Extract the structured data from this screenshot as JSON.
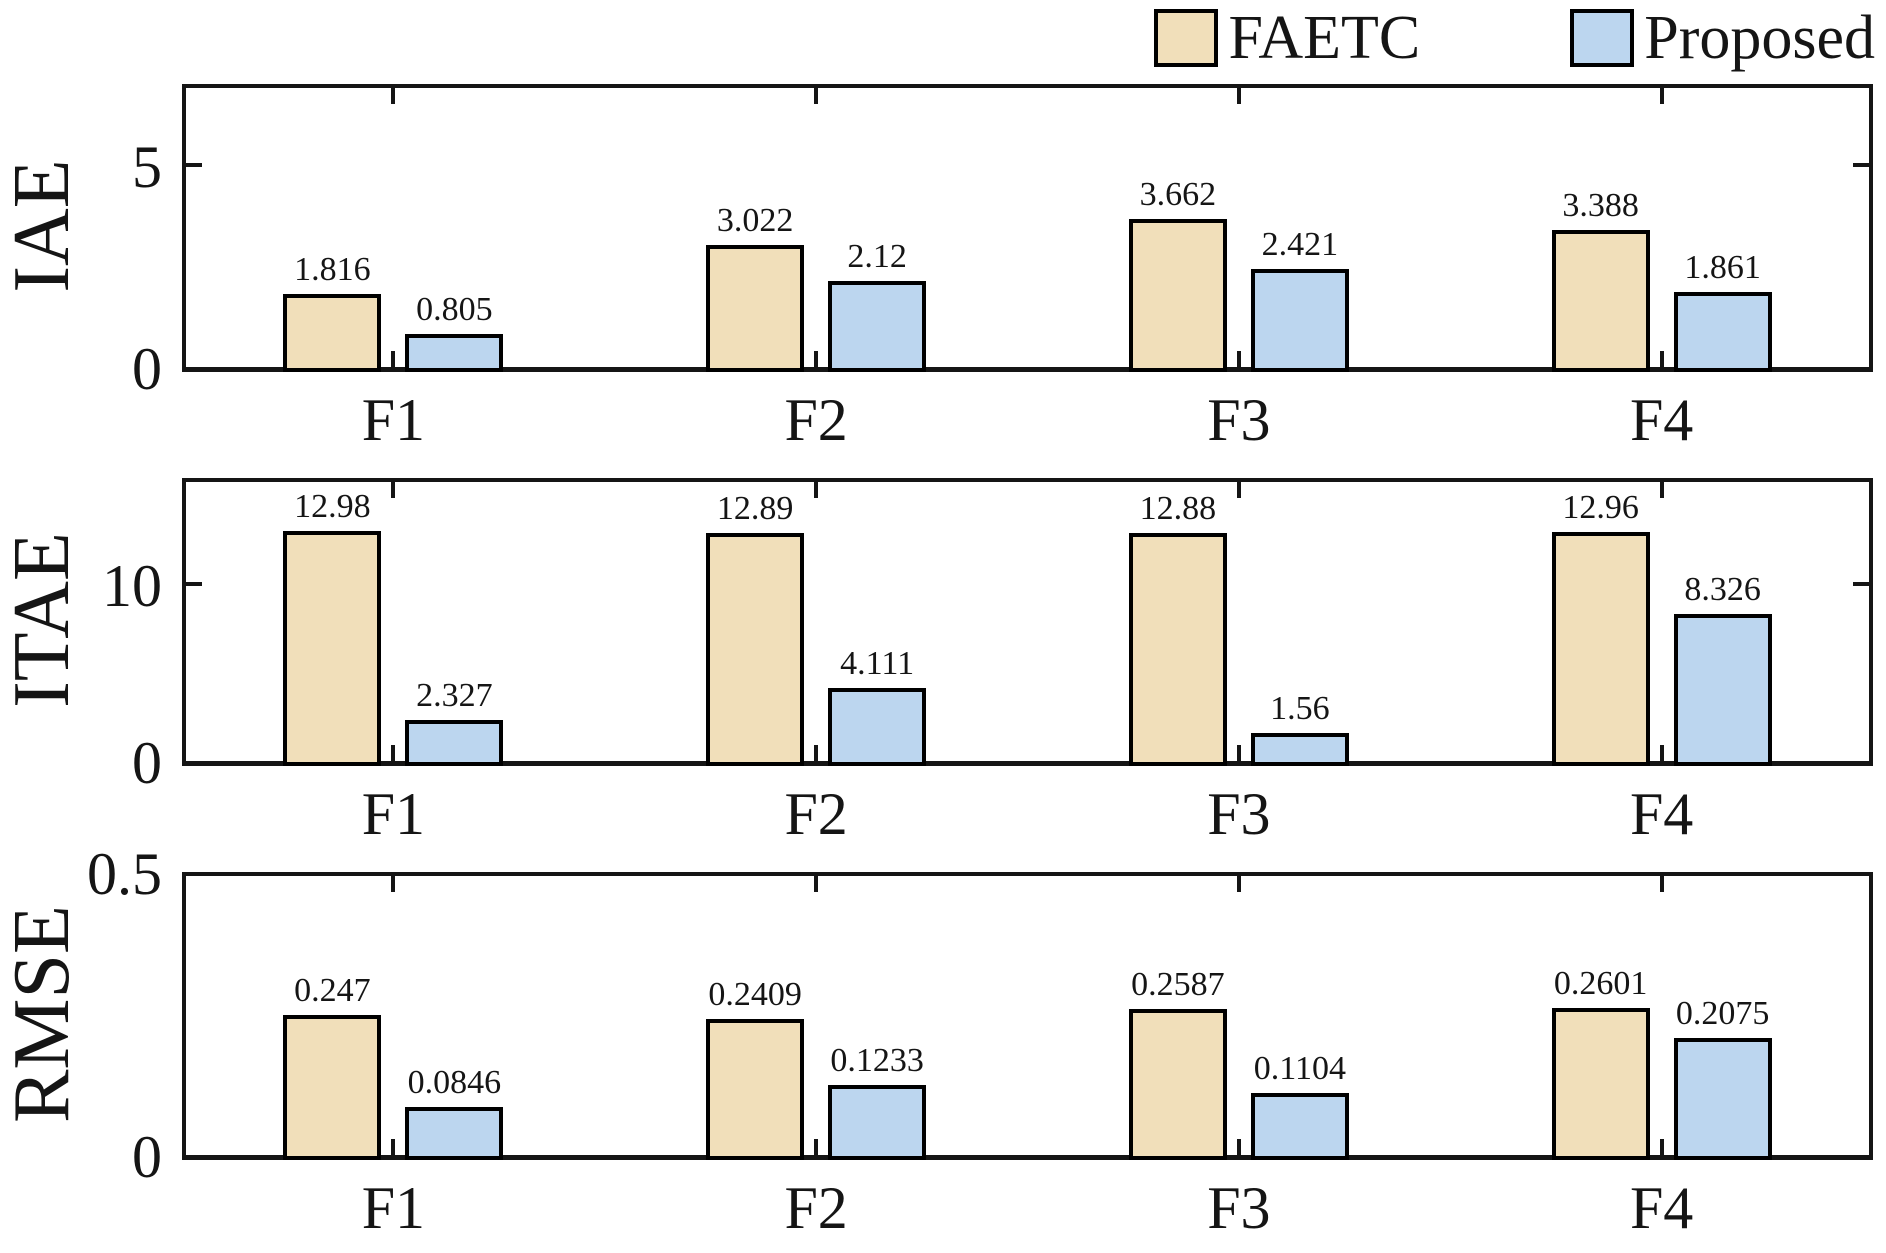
{
  "colors": {
    "faetc_fill": "#F1DFBA",
    "proposed_fill": "#BCD6EF",
    "axis": "#151515",
    "bar_border": "#000000",
    "background": "#FFFFFF"
  },
  "legend": {
    "items": [
      {
        "label": "FAETC",
        "color": "#F1DFBA"
      },
      {
        "label": "Proposed",
        "color": "#BCD6EF"
      }
    ]
  },
  "chart_data": [
    {
      "type": "bar",
      "ylabel": "IAE",
      "categories": [
        "F1",
        "F2",
        "F3",
        "F4"
      ],
      "series": [
        {
          "name": "FAETC",
          "color": "#F1DFBA",
          "values": [
            1.816,
            3.022,
            3.662,
            3.388
          ],
          "labels": [
            "1.816",
            "3.022",
            "3.662",
            "3.388"
          ]
        },
        {
          "name": "Proposed",
          "color": "#BCD6EF",
          "values": [
            0.805,
            2.12,
            2.421,
            1.861
          ],
          "labels": [
            "0.805",
            "2.12",
            "2.421",
            "1.861"
          ]
        }
      ],
      "ylim": [
        0,
        7
      ],
      "yticks": [
        {
          "value": 0,
          "label": "0"
        },
        {
          "value": 5,
          "label": "5"
        }
      ],
      "grid": false,
      "legend_position": "top-right-outside"
    },
    {
      "type": "bar",
      "ylabel": "ITAE",
      "categories": [
        "F1",
        "F2",
        "F3",
        "F4"
      ],
      "series": [
        {
          "name": "FAETC",
          "color": "#F1DFBA",
          "values": [
            12.98,
            12.89,
            12.88,
            12.96
          ],
          "labels": [
            "12.98",
            "12.89",
            "12.88",
            "12.96"
          ]
        },
        {
          "name": "Proposed",
          "color": "#BCD6EF",
          "values": [
            2.327,
            4.111,
            1.56,
            8.326
          ],
          "labels": [
            "2.327",
            "4.111",
            "1.56",
            "8.326"
          ]
        }
      ],
      "ylim": [
        0,
        16
      ],
      "yticks": [
        {
          "value": 0,
          "label": "0"
        },
        {
          "value": 10,
          "label": "10"
        }
      ],
      "grid": false
    },
    {
      "type": "bar",
      "ylabel": "RMSE",
      "categories": [
        "F1",
        "F2",
        "F3",
        "F4"
      ],
      "series": [
        {
          "name": "FAETC",
          "color": "#F1DFBA",
          "values": [
            0.247,
            0.2409,
            0.2587,
            0.2601
          ],
          "labels": [
            "0.247",
            "0.2409",
            "0.2587",
            "0.2601"
          ]
        },
        {
          "name": "Proposed",
          "color": "#BCD6EF",
          "values": [
            0.0846,
            0.1233,
            0.1104,
            0.2075
          ],
          "labels": [
            "0.0846",
            "0.1233",
            "0.1104",
            "0.2075"
          ]
        }
      ],
      "ylim": [
        0,
        0.5
      ],
      "yticks": [
        {
          "value": 0,
          "label": "0"
        },
        {
          "value": 0.5,
          "label": "0.5"
        }
      ],
      "grid": false
    }
  ]
}
